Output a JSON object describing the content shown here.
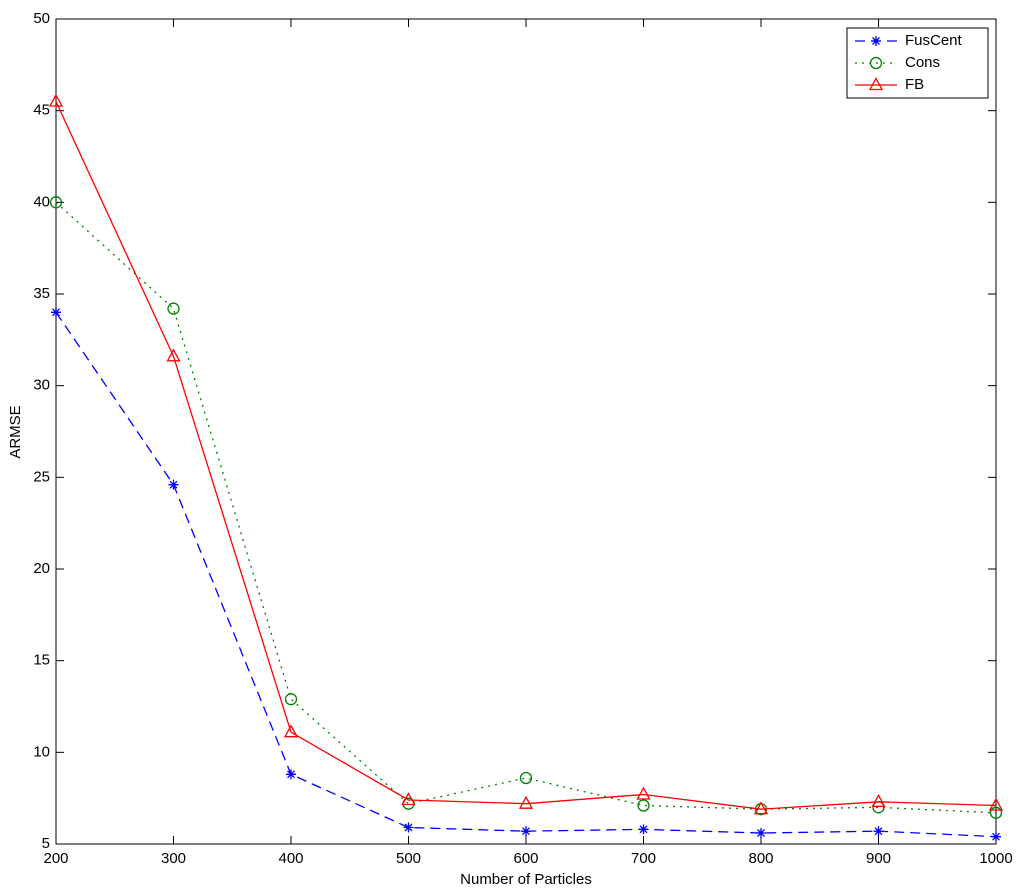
{
  "chart_data": {
    "type": "line",
    "x_label": "Number of Particles",
    "y_label": "ARMSE",
    "x": [
      200,
      300,
      400,
      500,
      600,
      700,
      800,
      900,
      1000
    ],
    "series": [
      {
        "name": "FusCent",
        "color": "#0000ff",
        "linestyle": "dashed",
        "marker": "asterisk",
        "values": [
          34.0,
          24.6,
          8.8,
          5.9,
          5.7,
          5.8,
          5.6,
          5.7,
          5.4
        ]
      },
      {
        "name": "Cons",
        "color": "#008000",
        "linestyle": "dotted",
        "marker": "circle",
        "values": [
          40.0,
          34.2,
          12.9,
          7.2,
          8.6,
          7.1,
          6.9,
          7.0,
          6.7
        ]
      },
      {
        "name": "FB",
        "color": "#ff0000",
        "linestyle": "solid",
        "marker": "triangle",
        "values": [
          45.5,
          31.6,
          11.1,
          7.4,
          7.2,
          7.7,
          6.9,
          7.3,
          7.1
        ]
      }
    ],
    "xlim": [
      200,
      1000
    ],
    "ylim": [
      5,
      50
    ],
    "xticks": [
      200,
      300,
      400,
      500,
      600,
      700,
      800,
      900,
      1000
    ],
    "yticks": [
      5,
      10,
      15,
      20,
      25,
      30,
      35,
      40,
      45,
      50
    ],
    "legend": "top-right",
    "grid": false
  }
}
